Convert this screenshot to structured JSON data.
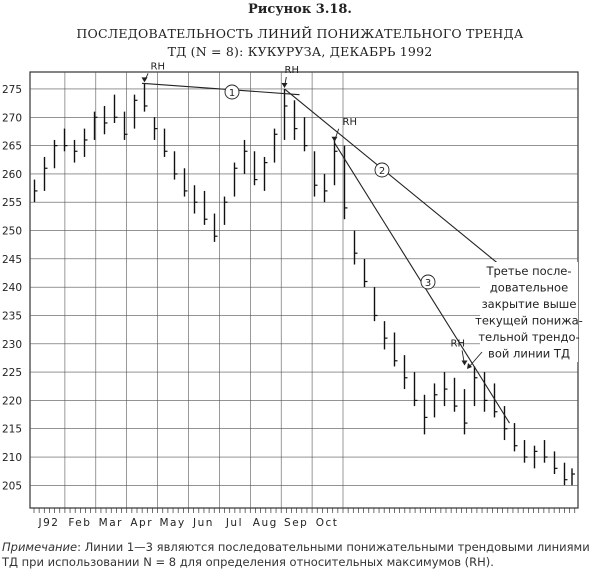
{
  "figure_label": "Рисунок 3.18.",
  "title_line1": "ПОСЛЕДОВАТЕЛЬНОСТЬ ЛИНИЙ ПОНИЖАТЕЛЬНОГО ТРЕНДА",
  "title_line2": "ТД (N = 8): КУКУРУЗА, ДЕКАБРЬ 1992",
  "note_label": "Примечание",
  "note_text": ": Линии 1—3 являются последовательными понижательными трендовыми линиями ТД при использовании N = 8 для определения относительных максимумов (RH).",
  "chart_data": {
    "type": "ohlc",
    "ylim": [
      201,
      278
    ],
    "y_ticks": [
      205,
      210,
      215,
      220,
      225,
      230,
      235,
      240,
      245,
      250,
      255,
      260,
      265,
      270,
      275
    ],
    "y_tick_labels": [
      "205",
      "210",
      "215",
      "220",
      "225",
      "230",
      "235",
      "240",
      "245",
      "250",
      "255",
      "260",
      "265",
      "270",
      "275"
    ],
    "x_ticks": [
      "J92",
      "Feb",
      "Mar",
      "Apr",
      "May",
      "Jun",
      "Jul",
      "Aug",
      "Sep",
      "Oct"
    ],
    "grid": true,
    "bars": [
      {
        "x": 1,
        "high": 259,
        "low": 255,
        "close": 257
      },
      {
        "x": 5,
        "high": 263,
        "low": 257,
        "close": 261
      },
      {
        "x": 9,
        "high": 266,
        "low": 261,
        "close": 265
      },
      {
        "x": 13,
        "high": 268,
        "low": 264,
        "close": 265
      },
      {
        "x": 17,
        "high": 266,
        "low": 262,
        "close": 264
      },
      {
        "x": 21,
        "high": 268,
        "low": 263,
        "close": 266
      },
      {
        "x": 25,
        "high": 271,
        "low": 266,
        "close": 270
      },
      {
        "x": 29,
        "high": 272,
        "low": 267,
        "close": 269
      },
      {
        "x": 33,
        "high": 274,
        "low": 269,
        "close": 270
      },
      {
        "x": 37,
        "high": 271,
        "low": 266,
        "close": 267
      },
      {
        "x": 41,
        "high": 274,
        "low": 268,
        "close": 273
      },
      {
        "x": 45,
        "high": 276,
        "low": 271,
        "close": 272
      },
      {
        "x": 49,
        "high": 270,
        "low": 266,
        "close": 268
      },
      {
        "x": 53,
        "high": 268,
        "low": 263,
        "close": 264
      },
      {
        "x": 57,
        "high": 264,
        "low": 259,
        "close": 260
      },
      {
        "x": 61,
        "high": 261,
        "low": 256,
        "close": 257
      },
      {
        "x": 65,
        "high": 258,
        "low": 253,
        "close": 255
      },
      {
        "x": 69,
        "high": 257,
        "low": 251,
        "close": 252
      },
      {
        "x": 73,
        "high": 253,
        "low": 248,
        "close": 249
      },
      {
        "x": 77,
        "high": 256,
        "low": 251,
        "close": 255
      },
      {
        "x": 81,
        "high": 262,
        "low": 256,
        "close": 261
      },
      {
        "x": 85,
        "high": 266,
        "low": 260,
        "close": 264
      },
      {
        "x": 89,
        "high": 264,
        "low": 258,
        "close": 259
      },
      {
        "x": 93,
        "high": 263,
        "low": 257,
        "close": 262
      },
      {
        "x": 97,
        "high": 268,
        "low": 262,
        "close": 267
      },
      {
        "x": 101,
        "high": 275,
        "low": 266,
        "close": 272
      },
      {
        "x": 105,
        "high": 273,
        "low": 266,
        "close": 268
      },
      {
        "x": 109,
        "high": 270,
        "low": 264,
        "close": 265
      },
      {
        "x": 113,
        "high": 264,
        "low": 256,
        "close": 258
      },
      {
        "x": 117,
        "high": 260,
        "low": 255,
        "close": 257
      },
      {
        "x": 121,
        "high": 266,
        "low": 258,
        "close": 264
      },
      {
        "x": 125,
        "high": 265,
        "low": 252,
        "close": 254
      },
      {
        "x": 129,
        "high": 250,
        "low": 244,
        "close": 246
      },
      {
        "x": 133,
        "high": 245,
        "low": 240,
        "close": 241
      },
      {
        "x": 137,
        "high": 240,
        "low": 234,
        "close": 235
      },
      {
        "x": 141,
        "high": 234,
        "low": 229,
        "close": 231
      },
      {
        "x": 145,
        "high": 232,
        "low": 226,
        "close": 227
      },
      {
        "x": 149,
        "high": 228,
        "low": 222,
        "close": 224
      },
      {
        "x": 153,
        "high": 225,
        "low": 219,
        "close": 220
      },
      {
        "x": 157,
        "high": 221,
        "low": 214,
        "close": 217
      },
      {
        "x": 161,
        "high": 223,
        "low": 217,
        "close": 221
      },
      {
        "x": 165,
        "high": 225,
        "low": 219,
        "close": 222
      },
      {
        "x": 169,
        "high": 224,
        "low": 218,
        "close": 219
      },
      {
        "x": 173,
        "high": 222,
        "low": 214,
        "close": 216
      },
      {
        "x": 177,
        "high": 226,
        "low": 219,
        "close": 224
      },
      {
        "x": 181,
        "high": 225,
        "low": 218,
        "close": 220
      },
      {
        "x": 185,
        "high": 223,
        "low": 217,
        "close": 218
      },
      {
        "x": 189,
        "high": 219,
        "low": 213,
        "close": 215
      },
      {
        "x": 193,
        "high": 216,
        "low": 211,
        "close": 212
      },
      {
        "x": 197,
        "high": 213,
        "low": 209,
        "close": 210
      },
      {
        "x": 201,
        "high": 212,
        "low": 208,
        "close": 211
      },
      {
        "x": 205,
        "high": 213,
        "low": 209,
        "close": 210
      },
      {
        "x": 209,
        "high": 211,
        "low": 207,
        "close": 208
      },
      {
        "x": 213,
        "high": 209,
        "low": 205,
        "close": 206
      },
      {
        "x": 216,
        "high": 208,
        "low": 205,
        "close": 207
      }
    ],
    "trend_lines": [
      {
        "label": "①",
        "x0": 44,
        "y0": 276,
        "x1": 107,
        "y1": 274
      },
      {
        "label": "②",
        "x0": 101,
        "y0": 275,
        "x1": 198,
        "y1": 240
      },
      {
        "label": "③",
        "x0": 121,
        "y0": 265.5,
        "x1": 191,
        "y1": 216
      }
    ],
    "rh_markers": [
      {
        "label": "RH",
        "x": 45,
        "y": 276
      },
      {
        "label": "RH",
        "x": 101,
        "y": 275
      },
      {
        "label": "RH",
        "x": 121,
        "y": 265.5
      },
      {
        "label": "RH",
        "x": 173,
        "y": 226
      }
    ],
    "annotation_text": [
      "Третье после-",
      "довательное",
      "закрытие выше",
      "текущей понижа-",
      "тельной трендо-",
      "вой линии ТД"
    ]
  }
}
